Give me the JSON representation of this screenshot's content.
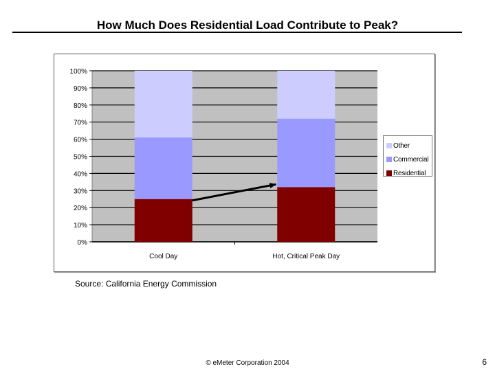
{
  "slide": {
    "title": "How Much Does Residential Load Contribute to Peak?",
    "source": "Source: California Energy Commission",
    "footer": "© eMeter Corporation 2004",
    "page_number": "6"
  },
  "chart_data": {
    "type": "bar",
    "stacked": true,
    "percent": true,
    "title": "",
    "xlabel": "",
    "ylabel": "",
    "categories": [
      "Cool Day",
      "Hot, Critical Peak Day"
    ],
    "series": [
      {
        "name": "Residential",
        "color": "#800000",
        "values": [
          25,
          32
        ]
      },
      {
        "name": "Commercial",
        "color": "#9999ff",
        "values": [
          36,
          40
        ]
      },
      {
        "name": "Other",
        "color": "#ccccff",
        "values": [
          39,
          28
        ]
      }
    ],
    "ylim": [
      0,
      100
    ],
    "yticks": [
      0,
      10,
      20,
      30,
      40,
      50,
      60,
      70,
      80,
      90,
      100
    ],
    "ytick_suffix": "%",
    "grid": true,
    "plot_background": "#c0c0c0",
    "legend": {
      "position": "right",
      "order": [
        "Other",
        "Commercial",
        "Residential"
      ]
    },
    "annotation": {
      "type": "arrow",
      "from": "Cool Day.Residential",
      "to": "Hot, Critical Peak Day.Residential"
    }
  }
}
